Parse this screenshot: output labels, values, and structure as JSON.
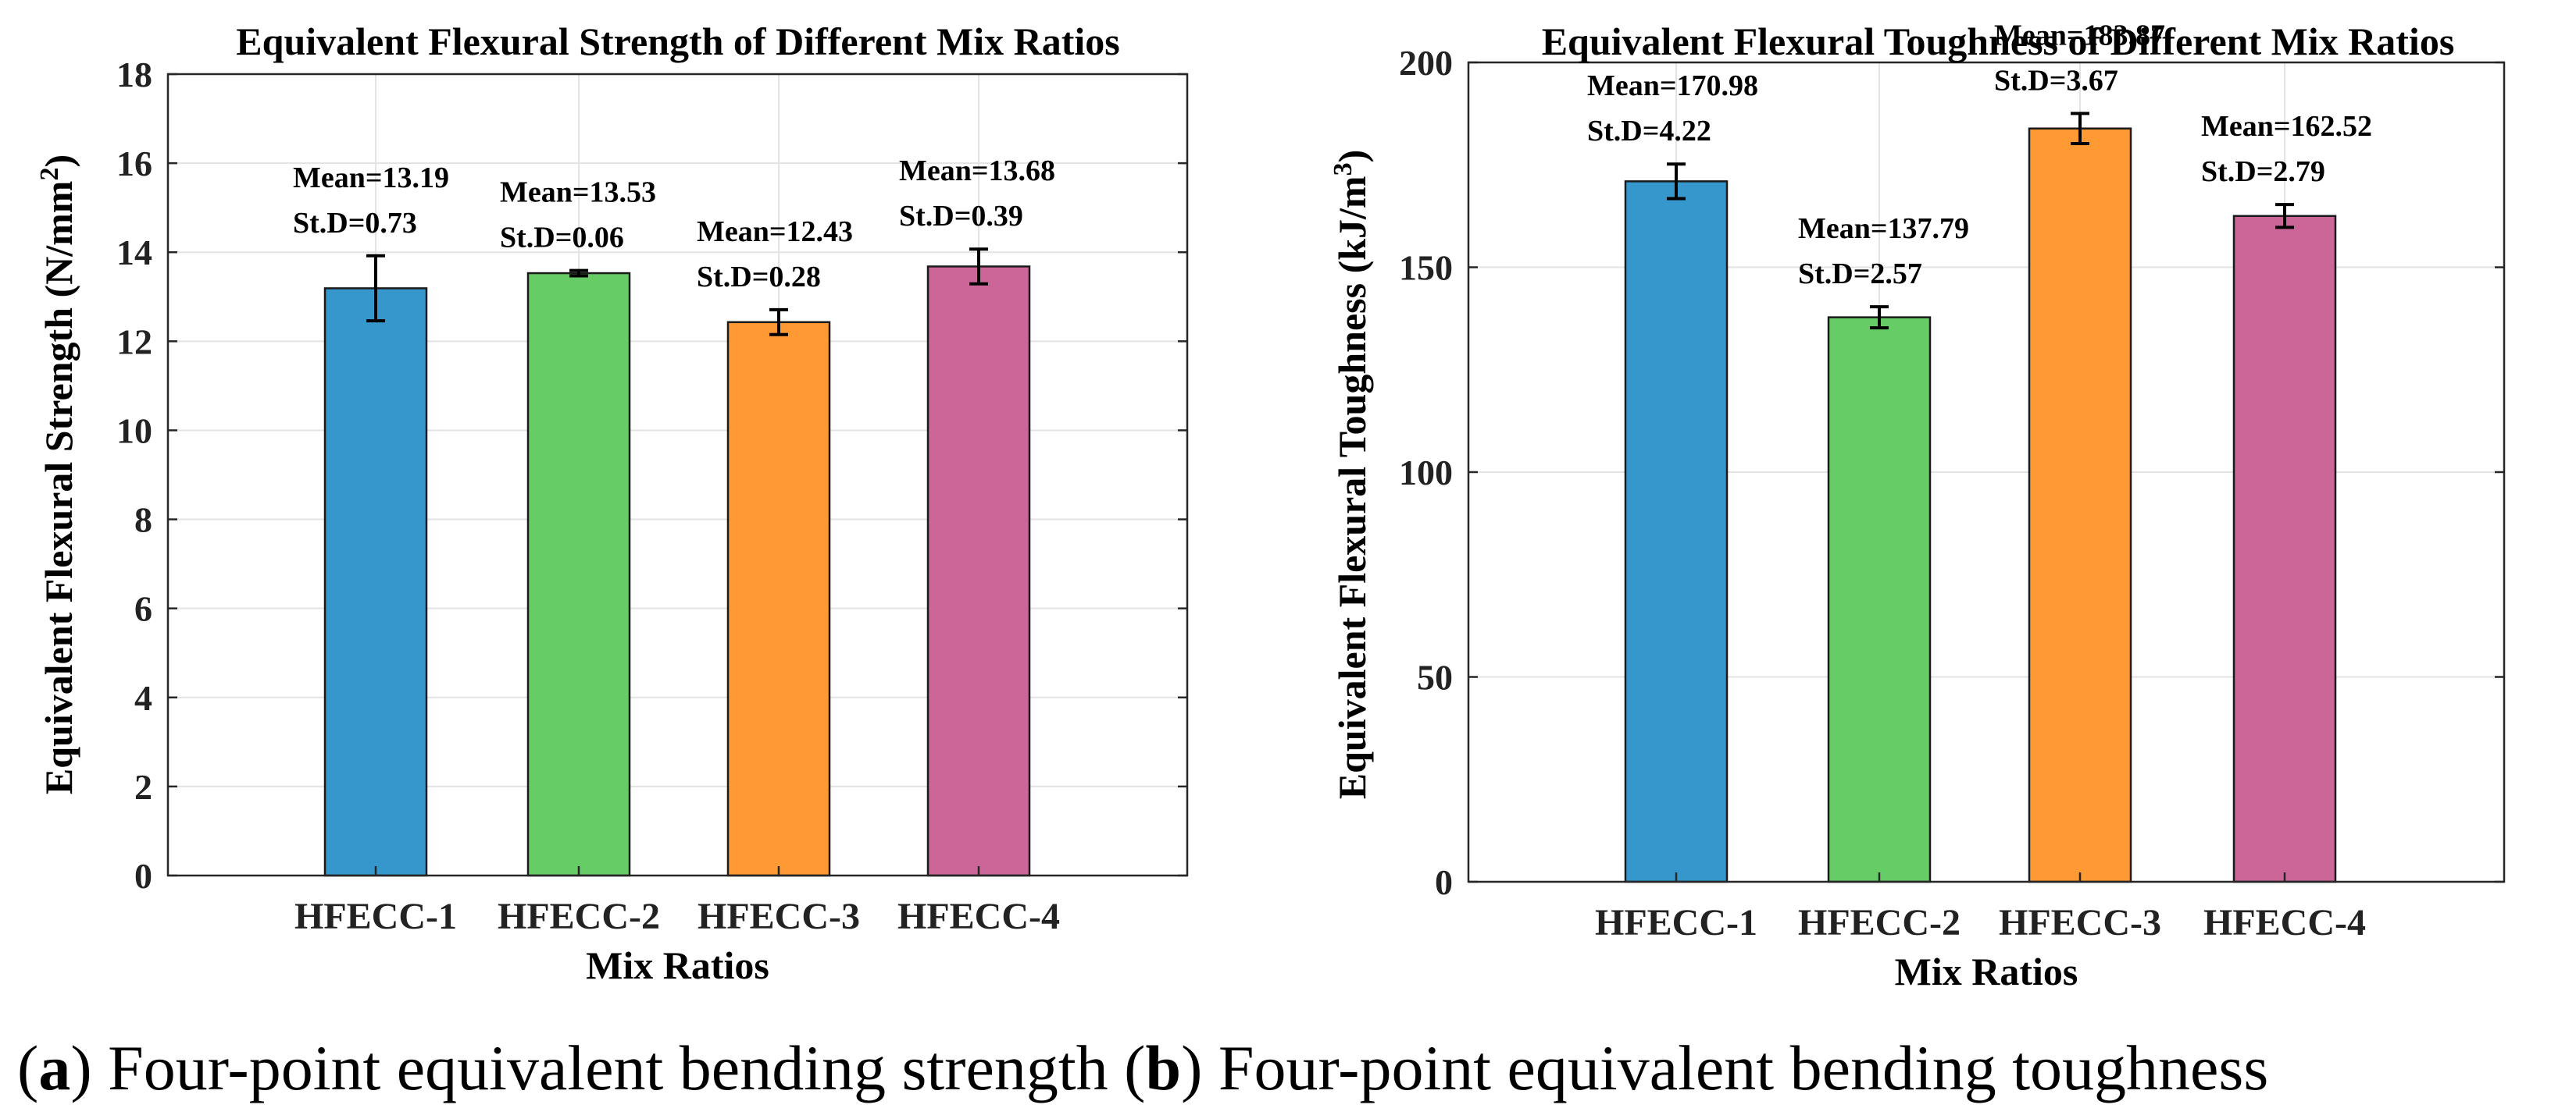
{
  "chart_data": [
    {
      "type": "bar",
      "title": "Equivalent Flexural Strength of Different Mix Ratios",
      "xlabel": "Mix Ratios",
      "ylabel": "Equivalent Flexural Strength (N/mm",
      "ylabel_sup": "2",
      "ylabel_end": ")",
      "ylim": [
        0,
        18
      ],
      "yticks": [
        0,
        2,
        4,
        6,
        8,
        10,
        12,
        14,
        16,
        18
      ],
      "grid": true,
      "categories": [
        "HFECC-1",
        "HFECC-2",
        "HFECC-3",
        "HFECC-4"
      ],
      "values": [
        13.19,
        13.53,
        12.43,
        13.68
      ],
      "errors": [
        0.73,
        0.06,
        0.28,
        0.39
      ],
      "annotations": [
        [
          "Mean=13.19",
          "St.D=0.73"
        ],
        [
          "Mean=13.53",
          "St.D=0.06"
        ],
        [
          "Mean=12.43",
          "St.D=0.28"
        ],
        [
          "Mean=13.68",
          "St.D=0.39"
        ]
      ],
      "colors": [
        "#3597cc",
        "#66cc66",
        "#ff9933",
        "#cc6699"
      ]
    },
    {
      "type": "bar",
      "title": "Equivalent Flexural Toughness of Different Mix Ratios",
      "xlabel": "Mix Ratios",
      "ylabel": "Equivalent Flexural Toughness (kJ/m",
      "ylabel_sup": "3",
      "ylabel_end": ")",
      "ylim": [
        0,
        200
      ],
      "yticks": [
        0,
        50,
        100,
        150,
        200
      ],
      "grid": true,
      "categories": [
        "HFECC-1",
        "HFECC-2",
        "HFECC-3",
        "HFECC-4"
      ],
      "values": [
        170.98,
        137.79,
        183.87,
        162.52
      ],
      "errors": [
        4.22,
        2.57,
        3.67,
        2.79
      ],
      "annotations": [
        [
          "Mean=170.98",
          "St.D=4.22"
        ],
        [
          "Mean=137.79",
          "St.D=2.57"
        ],
        [
          "Mean=183.87",
          "St.D=3.67"
        ],
        [
          "Mean=162.52",
          "St.D=2.79"
        ]
      ],
      "colors": [
        "#3597cc",
        "#66cc66",
        "#ff9933",
        "#cc6699"
      ]
    }
  ],
  "captions": [
    {
      "letter": "a",
      "text": " Four-point equivalent bending strength "
    },
    {
      "letter": "b",
      "text": " Four-point equivalent bending toughness"
    }
  ]
}
